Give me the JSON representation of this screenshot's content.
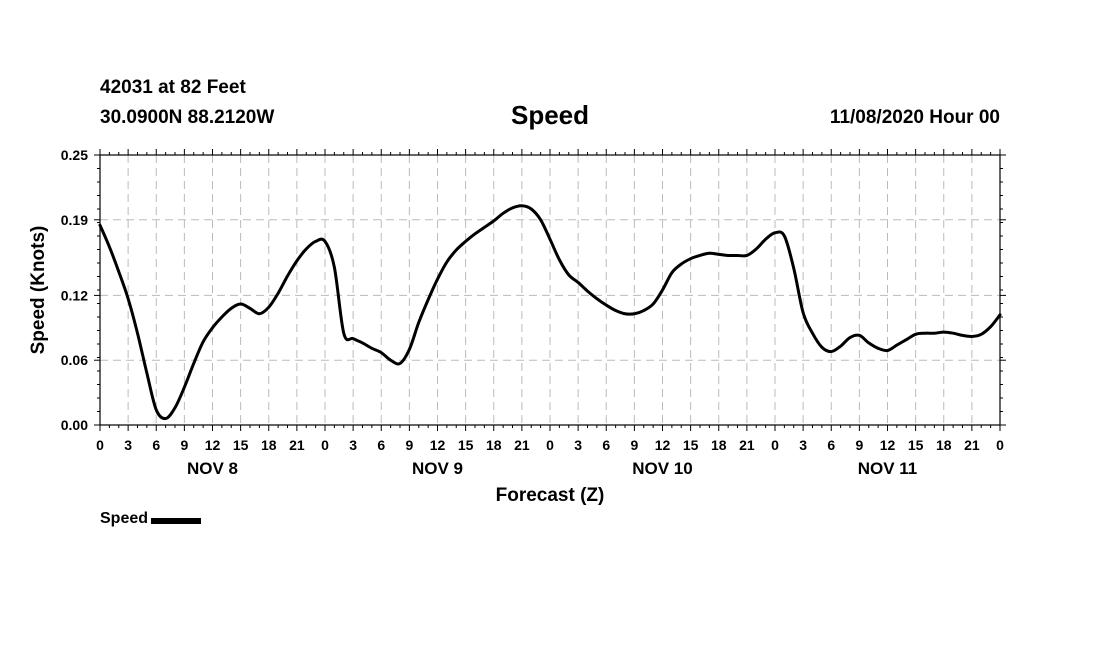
{
  "header": {
    "station": "42031 at 82 Feet",
    "coords": "30.0900N 88.2120W",
    "title": "Speed",
    "runtime": "11/08/2020 Hour 00"
  },
  "chart_data": {
    "type": "line",
    "title": "Speed",
    "xlabel": "Forecast (Z)",
    "ylabel": "Speed (Knots)",
    "ylim": [
      0,
      0.25
    ],
    "yticks": [
      "0.00",
      "0.06",
      "0.12",
      "0.19",
      "0.25"
    ],
    "xlim": [
      0,
      96
    ],
    "xtick_labels": [
      "0",
      "3",
      "6",
      "9",
      "12",
      "15",
      "18",
      "21",
      "0",
      "3",
      "6",
      "9",
      "12",
      "15",
      "18",
      "21",
      "0",
      "3",
      "6",
      "9",
      "12",
      "15",
      "18",
      "21",
      "0",
      "3",
      "6",
      "9",
      "12",
      "15",
      "18",
      "21",
      "0"
    ],
    "day_labels": [
      {
        "label": "NOV 8",
        "hour": 12
      },
      {
        "label": "NOV 9",
        "hour": 36
      },
      {
        "label": "NOV 10",
        "hour": 60
      },
      {
        "label": "NOV 11",
        "hour": 84
      }
    ],
    "grid": true,
    "legend_position": "bottom-left",
    "series": [
      {
        "name": "Speed",
        "color": "#000000",
        "x": [
          0,
          1,
          2,
          3,
          4,
          5,
          6,
          7,
          8,
          9,
          10,
          11,
          12,
          13,
          14,
          15,
          16,
          17,
          18,
          19,
          20,
          21,
          22,
          23,
          24,
          25,
          26,
          27,
          28,
          29,
          30,
          31,
          32,
          33,
          34,
          35,
          36,
          37,
          38,
          39,
          40,
          41,
          42,
          43,
          44,
          45,
          46,
          47,
          48,
          49,
          50,
          51,
          52,
          53,
          54,
          55,
          56,
          57,
          58,
          59,
          60,
          61,
          62,
          63,
          64,
          65,
          66,
          67,
          68,
          69,
          70,
          71,
          72,
          73,
          74,
          75,
          76,
          77,
          78,
          79,
          80,
          81,
          82,
          83,
          84,
          85,
          86,
          87,
          88,
          89,
          90,
          91,
          92,
          93,
          94,
          95,
          96
        ],
        "y": [
          0.185,
          0.165,
          0.142,
          0.117,
          0.085,
          0.048,
          0.014,
          0.006,
          0.016,
          0.035,
          0.057,
          0.077,
          0.09,
          0.1,
          0.108,
          0.112,
          0.108,
          0.103,
          0.109,
          0.122,
          0.138,
          0.152,
          0.163,
          0.17,
          0.17,
          0.146,
          0.085,
          0.08,
          0.076,
          0.071,
          0.067,
          0.06,
          0.057,
          0.07,
          0.095,
          0.116,
          0.135,
          0.151,
          0.162,
          0.17,
          0.177,
          0.183,
          0.189,
          0.196,
          0.201,
          0.203,
          0.2,
          0.19,
          0.172,
          0.153,
          0.139,
          0.132,
          0.124,
          0.117,
          0.111,
          0.106,
          0.103,
          0.103,
          0.106,
          0.112,
          0.125,
          0.141,
          0.149,
          0.154,
          0.157,
          0.159,
          0.158,
          0.157,
          0.157,
          0.157,
          0.163,
          0.172,
          0.178,
          0.175,
          0.145,
          0.104,
          0.085,
          0.072,
          0.068,
          0.073,
          0.081,
          0.083,
          0.076,
          0.071,
          0.069,
          0.074,
          0.079,
          0.084,
          0.085,
          0.085,
          0.086,
          0.085,
          0.083,
          0.082,
          0.084,
          0.091,
          0.102
        ]
      }
    ]
  },
  "legend": {
    "label": "Speed"
  }
}
